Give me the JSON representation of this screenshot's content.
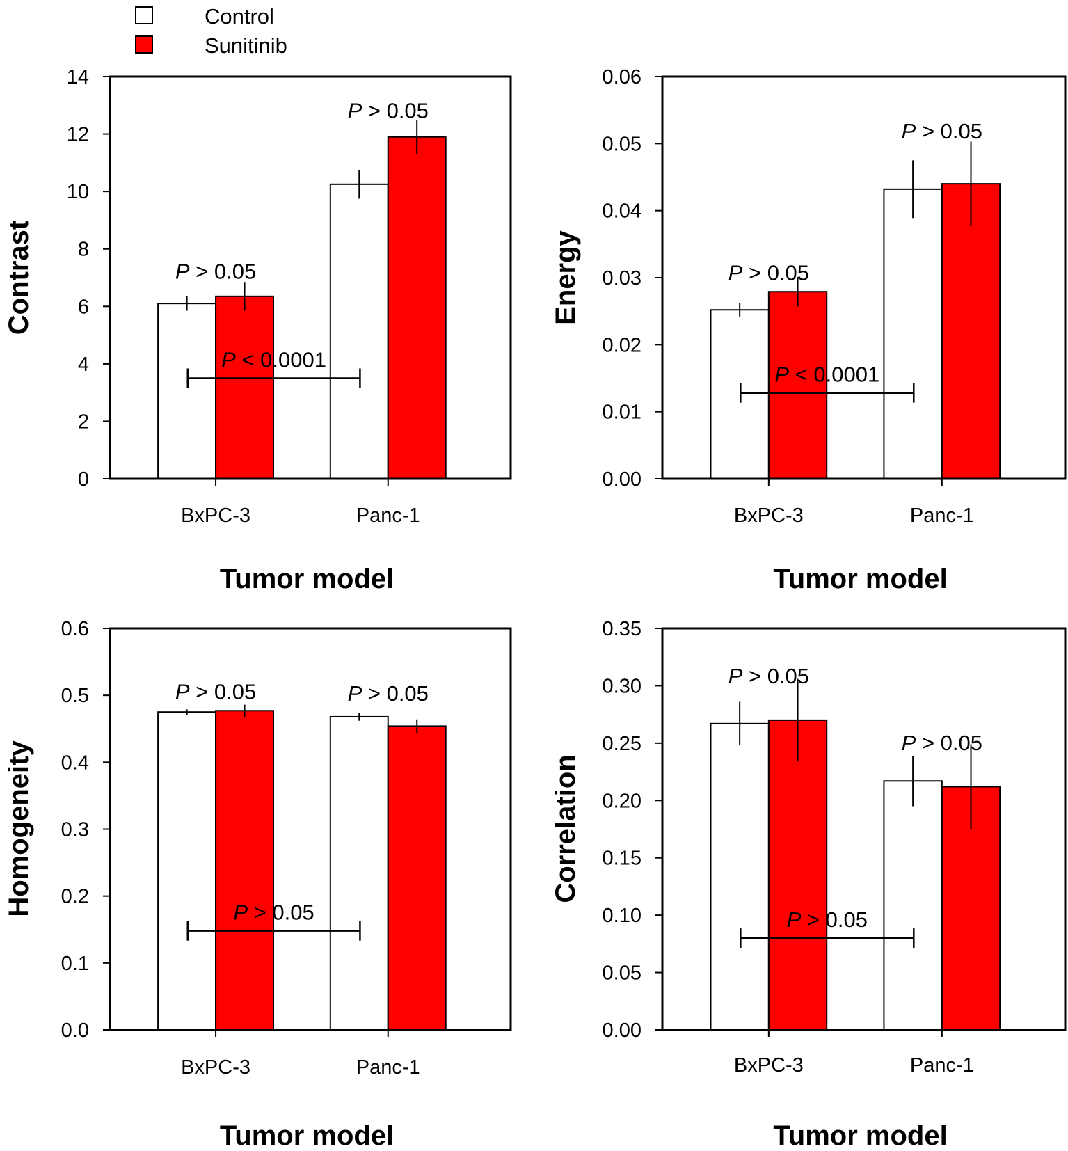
{
  "legend": {
    "control_label": "Control",
    "sunitinib_label": "Sunitinib",
    "control_color": "#ffffff",
    "sunitinib_color": "#ff0000"
  },
  "chart_data": [
    {
      "id": "contrast",
      "type": "bar",
      "ylabel": "Contrast",
      "xlabel": "Tumor model",
      "categories": [
        "BxPC-3",
        "Panc-1"
      ],
      "ylim": [
        0,
        14
      ],
      "yticks": [
        0,
        2,
        4,
        6,
        8,
        10,
        12,
        14
      ],
      "ytick_labels": [
        "0",
        "2",
        "4",
        "6",
        "8",
        "10",
        "12",
        "14"
      ],
      "series": [
        {
          "name": "Control",
          "values": [
            6.1,
            10.25
          ],
          "errors": [
            0.25,
            0.5
          ]
        },
        {
          "name": "Sunitinib",
          "values": [
            6.35,
            11.9
          ],
          "errors": [
            0.5,
            0.6
          ]
        }
      ],
      "annotations": [
        {
          "text": "P > 0.05",
          "category": 0,
          "y": 7.2
        },
        {
          "text": "P > 0.05",
          "category": 1,
          "y": 12.8
        }
      ],
      "bracket": {
        "text": "P < 0.0001",
        "y": 3.5
      }
    },
    {
      "id": "energy",
      "type": "bar",
      "ylabel": "Energy",
      "xlabel": "Tumor model",
      "categories": [
        "BxPC-3",
        "Panc-1"
      ],
      "ylim": [
        0,
        0.06
      ],
      "yticks": [
        0,
        0.01,
        0.02,
        0.03,
        0.04,
        0.05,
        0.06
      ],
      "ytick_labels": [
        "0.00",
        "0.01",
        "0.02",
        "0.03",
        "0.04",
        "0.05",
        "0.06"
      ],
      "series": [
        {
          "name": "Control",
          "values": [
            0.0252,
            0.0432
          ],
          "errors": [
            0.001,
            0.0043
          ]
        },
        {
          "name": "Sunitinib",
          "values": [
            0.0279,
            0.044
          ],
          "errors": [
            0.0022,
            0.0063
          ]
        }
      ],
      "annotations": [
        {
          "text": "P > 0.05",
          "category": 0,
          "y": 0.0307
        },
        {
          "text": "P > 0.05",
          "category": 1,
          "y": 0.0518
        }
      ],
      "bracket": {
        "text": "P < 0.0001",
        "y": 0.0128
      }
    },
    {
      "id": "homogeneity",
      "type": "bar",
      "ylabel": "Homogeneity",
      "xlabel": "Tumor model",
      "categories": [
        "BxPC-3",
        "Panc-1"
      ],
      "ylim": [
        0,
        0.6
      ],
      "yticks": [
        0,
        0.1,
        0.2,
        0.3,
        0.4,
        0.5,
        0.6
      ],
      "ytick_labels": [
        "0.0",
        "0.1",
        "0.2",
        "0.3",
        "0.4",
        "0.5",
        "0.6"
      ],
      "series": [
        {
          "name": "Control",
          "values": [
            0.475,
            0.468
          ],
          "errors": [
            0.004,
            0.006
          ]
        },
        {
          "name": "Sunitinib",
          "values": [
            0.477,
            0.454
          ],
          "errors": [
            0.009,
            0.01
          ]
        }
      ],
      "annotations": [
        {
          "text": "P > 0.05",
          "category": 0,
          "y": 0.505
        },
        {
          "text": "P > 0.05",
          "category": 1,
          "y": 0.502
        }
      ],
      "bracket": {
        "text": "P > 0.05",
        "y": 0.148
      }
    },
    {
      "id": "correlation",
      "type": "bar",
      "ylabel": "Correlation",
      "xlabel": "Tumor model",
      "categories": [
        "BxPC-3",
        "Panc-1"
      ],
      "ylim": [
        0,
        0.35
      ],
      "yticks": [
        0,
        0.05,
        0.1,
        0.15,
        0.2,
        0.25,
        0.3,
        0.35
      ],
      "ytick_labels": [
        "0.00",
        "0.05",
        "0.10",
        "0.15",
        "0.20",
        "0.25",
        "0.30",
        "0.35"
      ],
      "series": [
        {
          "name": "Control",
          "values": [
            0.267,
            0.217
          ],
          "errors": [
            0.019,
            0.022
          ]
        },
        {
          "name": "Sunitinib",
          "values": [
            0.27,
            0.212
          ],
          "errors": [
            0.036,
            0.037
          ]
        }
      ],
      "annotations": [
        {
          "text": "P > 0.05",
          "category": 0,
          "y": 0.308
        },
        {
          "text": "P > 0.05",
          "category": 1,
          "y": 0.25
        }
      ],
      "bracket": {
        "text": "P > 0.05",
        "y": 0.08
      }
    }
  ]
}
